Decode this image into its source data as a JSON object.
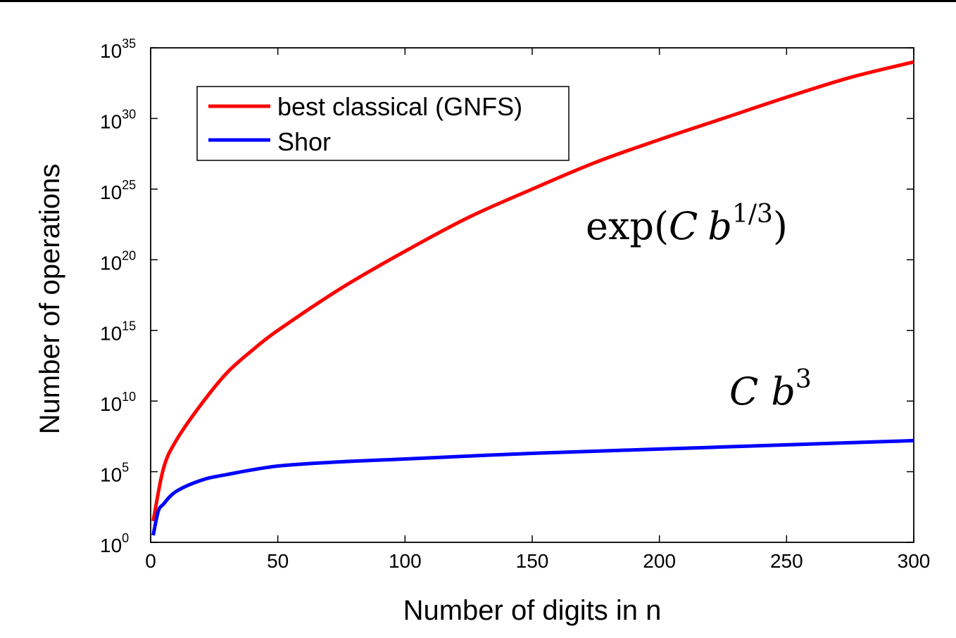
{
  "chart_data": {
    "type": "line",
    "title": "",
    "xlabel": "Number of digits in n",
    "ylabel": "Number of operations",
    "yscale": "log",
    "xlim": [
      0,
      300
    ],
    "ylim_log10": [
      0,
      35
    ],
    "x_ticks": [
      "0",
      "50",
      "100",
      "150",
      "200",
      "250",
      "300"
    ],
    "y_ticks": [
      {
        "base": "10",
        "exp": "0"
      },
      {
        "base": "10",
        "exp": "5"
      },
      {
        "base": "10",
        "exp": "10"
      },
      {
        "base": "10",
        "exp": "15"
      },
      {
        "base": "10",
        "exp": "20"
      },
      {
        "base": "10",
        "exp": "25"
      },
      {
        "base": "10",
        "exp": "30"
      },
      {
        "base": "10",
        "exp": "35"
      }
    ],
    "legend_position": "top-left",
    "series": [
      {
        "name": "best classical (GNFS)",
        "color": "#ff0000",
        "x": [
          1,
          5,
          10,
          20,
          30,
          40,
          50,
          75,
          100,
          125,
          150,
          175,
          200,
          225,
          250,
          275,
          300
        ],
        "log10_y": [
          1.5,
          5.2,
          7.2,
          9.8,
          12.0,
          13.6,
          15.0,
          18.0,
          20.6,
          23.0,
          25.0,
          26.9,
          28.5,
          30.0,
          31.5,
          32.9,
          34.0
        ]
      },
      {
        "name": "Shor",
        "color": "#0000ff",
        "x": [
          1,
          3,
          5,
          10,
          20,
          30,
          50,
          75,
          100,
          150,
          200,
          250,
          300
        ],
        "log10_y": [
          0.5,
          2.2,
          2.7,
          3.6,
          4.4,
          4.8,
          5.4,
          5.7,
          5.9,
          6.3,
          6.6,
          6.9,
          7.2
        ]
      }
    ],
    "annotations": [
      {
        "text": "exp(",
        "italic_var": "C",
        "base": "b",
        "sup": "1/3",
        "close": ")"
      },
      {
        "italic_var": "C",
        "base": "b",
        "sup": "3"
      }
    ]
  }
}
